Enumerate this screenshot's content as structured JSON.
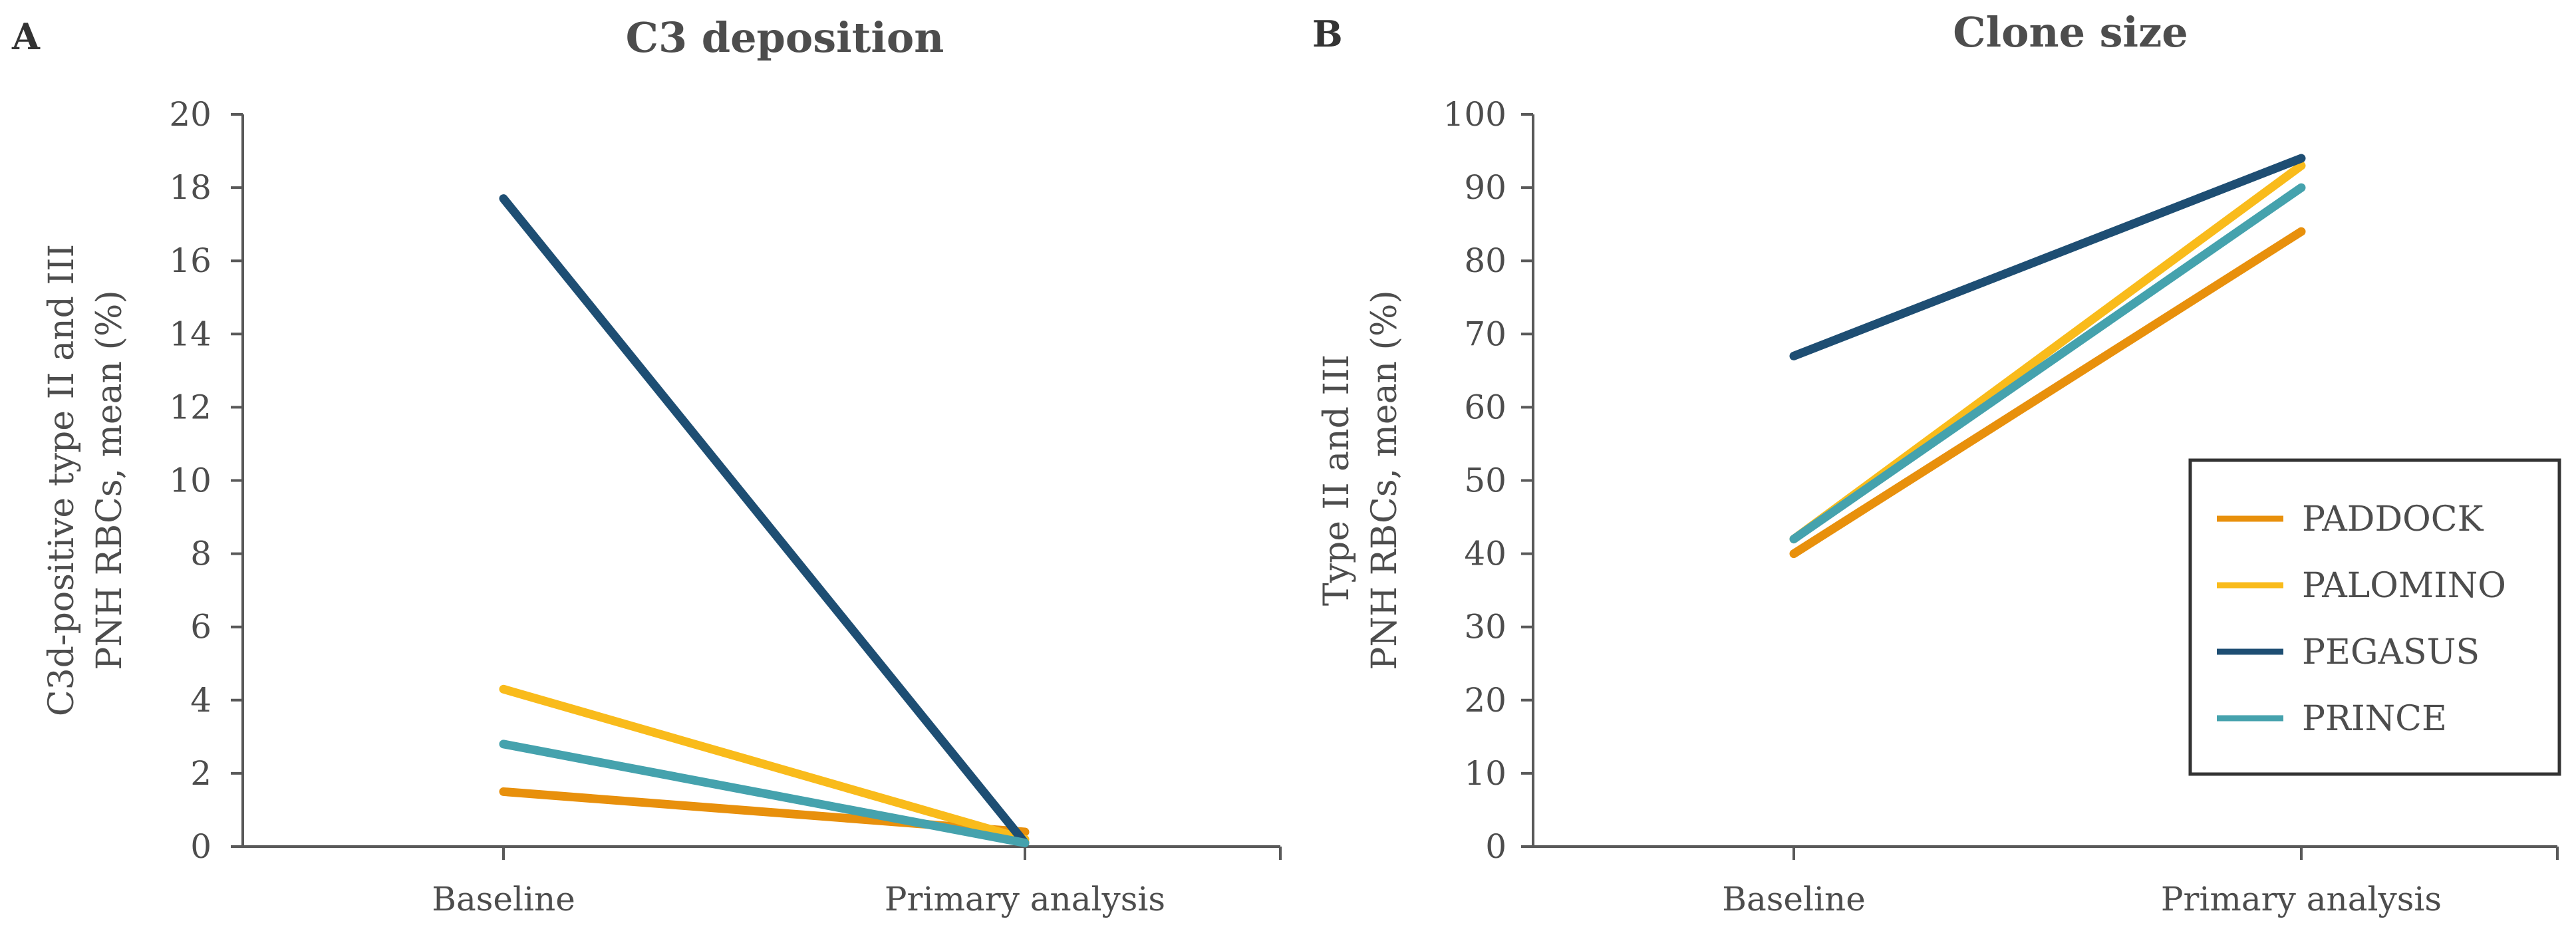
{
  "chart_data": [
    {
      "type": "line",
      "panel_letter": "A",
      "title": "C3 deposition",
      "xlabel": "",
      "ylabel_lines": [
        "C3d-positive type II and III",
        "PNH RBCs, mean (%)"
      ],
      "categories": [
        "Baseline",
        "Primary analysis"
      ],
      "ylim": [
        0,
        20
      ],
      "ytick_step": 2,
      "yticks": [
        "0",
        "2",
        "4",
        "6",
        "8",
        "10",
        "12",
        "14",
        "16",
        "18",
        "20"
      ],
      "grid": false,
      "series": [
        {
          "name": "PADDOCK",
          "color": "#e8900c",
          "values": [
            1.5,
            0.4
          ]
        },
        {
          "name": "PALOMINO",
          "color": "#f9bb1b",
          "values": [
            4.3,
            0.2
          ]
        },
        {
          "name": "PEGASUS",
          "color": "#1e4e73",
          "values": [
            17.7,
            0.1
          ]
        },
        {
          "name": "PRINCE",
          "color": "#45a2ad",
          "values": [
            2.8,
            0.1
          ]
        }
      ]
    },
    {
      "type": "line",
      "panel_letter": "B",
      "title": "Clone size",
      "xlabel": "",
      "ylabel_lines": [
        "Type II and III",
        "PNH RBCs, mean (%)"
      ],
      "categories": [
        "Baseline",
        "Primary analysis"
      ],
      "ylim": [
        0,
        100
      ],
      "ytick_step": 10,
      "yticks": [
        "0",
        "10",
        "20",
        "30",
        "40",
        "50",
        "60",
        "70",
        "80",
        "90",
        "100"
      ],
      "grid": false,
      "legend_position": "bottom-right",
      "series": [
        {
          "name": "PADDOCK",
          "color": "#e8900c",
          "values": [
            40,
            84
          ]
        },
        {
          "name": "PALOMINO",
          "color": "#f9bb1b",
          "values": [
            42,
            93
          ]
        },
        {
          "name": "PEGASUS",
          "color": "#1e4e73",
          "values": [
            67,
            94
          ]
        },
        {
          "name": "PRINCE",
          "color": "#45a2ad",
          "values": [
            42,
            90
          ]
        }
      ]
    }
  ],
  "legend": {
    "entries": [
      {
        "name": "PADDOCK",
        "color": "#e8900c"
      },
      {
        "name": "PALOMINO",
        "color": "#f9bb1b"
      },
      {
        "name": "PEGASUS",
        "color": "#1e4e73"
      },
      {
        "name": "PRINCE",
        "color": "#45a2ad"
      }
    ]
  }
}
